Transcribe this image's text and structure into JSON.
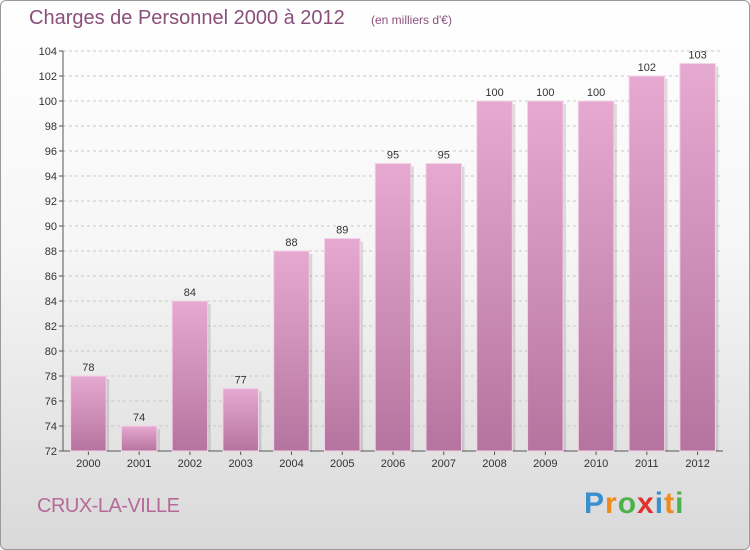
{
  "title": "Charges de Personnel 2000 à 2012",
  "subtitle": "(en milliers d'€)",
  "commune": "CRUX-LA-VILLE",
  "brand": {
    "letters": [
      "P",
      "r",
      "o",
      "x",
      "i",
      "t",
      "i"
    ],
    "colors": [
      "#3a8fd0",
      "#f08a1c",
      "#4db24b",
      "#e0312b",
      "#3a8fd0",
      "#f08a1c",
      "#4db24b"
    ]
  },
  "colors": {
    "bar_top": "#e6a9d0",
    "bar_bottom": "#b5749f",
    "title": "#8a4f7a",
    "grid": "#c8c8c8"
  },
  "chart_data": {
    "type": "bar",
    "categories": [
      "2000",
      "2001",
      "2002",
      "2003",
      "2004",
      "2005",
      "2006",
      "2007",
      "2008",
      "2009",
      "2010",
      "2011",
      "2012"
    ],
    "values": [
      78,
      74,
      84,
      77,
      88,
      89,
      95,
      95,
      100,
      100,
      100,
      102,
      103
    ],
    "ylim": [
      72,
      104
    ],
    "yticks": [
      72,
      74,
      76,
      78,
      80,
      82,
      84,
      86,
      88,
      90,
      92,
      94,
      96,
      98,
      100,
      102,
      104
    ],
    "grid": true,
    "data_labels": true
  }
}
